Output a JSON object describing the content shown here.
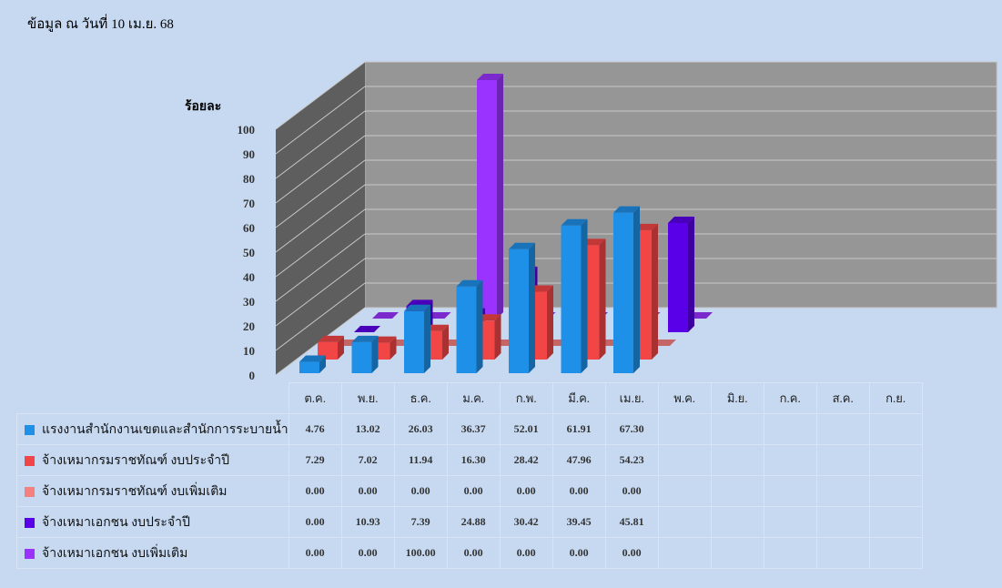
{
  "header": {
    "as_of": "ข้อมูล ณ วันที่ 10 เม.ย. 68"
  },
  "chart_data": {
    "type": "bar",
    "title": "",
    "ylabel": "ร้อยละ",
    "ylim": [
      0,
      100
    ],
    "yticks": [
      "0",
      "10",
      "20",
      "30",
      "40",
      "50",
      "60",
      "70",
      "80",
      "90",
      "100"
    ],
    "categories": [
      "ต.ค.",
      "พ.ย.",
      "ธ.ค.",
      "ม.ค.",
      "ก.พ.",
      "มี.ค.",
      "เม.ย.",
      "พ.ค.",
      "มิ.ย.",
      "ก.ค.",
      "ส.ค.",
      "ก.ย."
    ],
    "series": [
      {
        "name": "แรงงานสำนักงานเขตและสำนักการระบายน้ำ",
        "color": "#1e90e8",
        "values": [
          "4.76",
          "13.02",
          "26.03",
          "36.37",
          "52.01",
          "61.91",
          "67.30",
          "",
          "",
          "",
          "",
          ""
        ]
      },
      {
        "name": "จ้างเหมากรมราชทัณฑ์ งบประจำปี",
        "color": "#f24646",
        "values": [
          "7.29",
          "7.02",
          "11.94",
          "16.30",
          "28.42",
          "47.96",
          "54.23",
          "",
          "",
          "",
          "",
          ""
        ]
      },
      {
        "name": "จ้างเหมากรมราชทัณฑ์ งบเพิ่มเติม",
        "color": "#f58080",
        "values": [
          "0.00",
          "0.00",
          "0.00",
          "0.00",
          "0.00",
          "0.00",
          "0.00",
          "",
          "",
          "",
          "",
          ""
        ]
      },
      {
        "name": "จ้างเหมาเอกชน งบประจำปี",
        "color": "#5a00e8",
        "values": [
          "0.00",
          "10.93",
          "7.39",
          "24.88",
          "30.42",
          "39.45",
          "45.81",
          "",
          "",
          "",
          "",
          ""
        ]
      },
      {
        "name": "จ้างเหมาเอกชน งบเพิ่มเติม",
        "color": "#9a33ff",
        "values": [
          "0.00",
          "0.00",
          "100.00",
          "0.00",
          "0.00",
          "0.00",
          "0.00",
          "",
          "",
          "",
          "",
          ""
        ]
      }
    ],
    "legend": "left-table",
    "grid": true
  }
}
